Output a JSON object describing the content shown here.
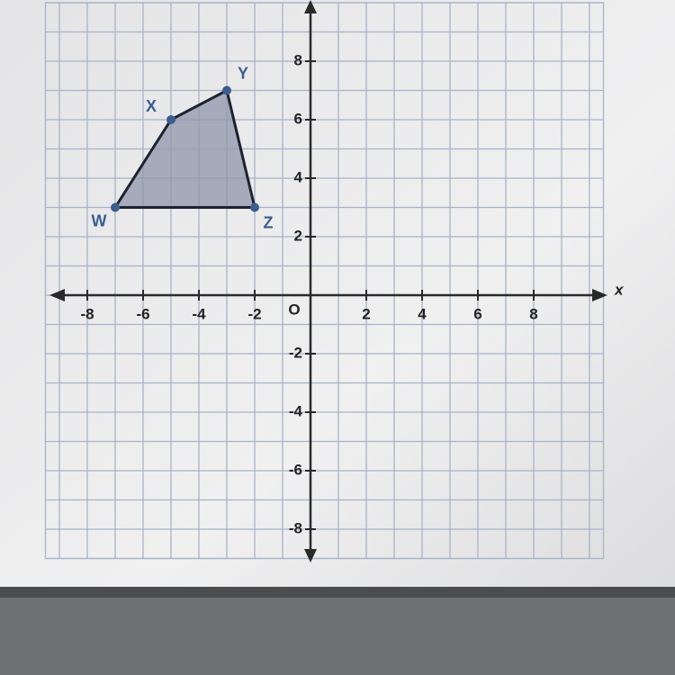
{
  "chart_data": {
    "type": "polygon",
    "x_label": "x",
    "origin_label": "O",
    "xlim": [
      -9.5,
      10.5
    ],
    "ylim": [
      -9,
      10
    ],
    "xticks": [
      -8,
      -6,
      -4,
      -2,
      2,
      4,
      6,
      8
    ],
    "yticks": [
      -8,
      -6,
      -4,
      -2,
      2,
      4,
      6,
      8
    ],
    "grid": true,
    "color": "#8d95aa",
    "point_color": "#3b5d8f",
    "labels": [
      "W",
      "X",
      "Y",
      "Z"
    ],
    "x": [
      -7,
      -5,
      -3,
      -2
    ],
    "y": [
      3,
      6,
      7,
      3
    ]
  }
}
